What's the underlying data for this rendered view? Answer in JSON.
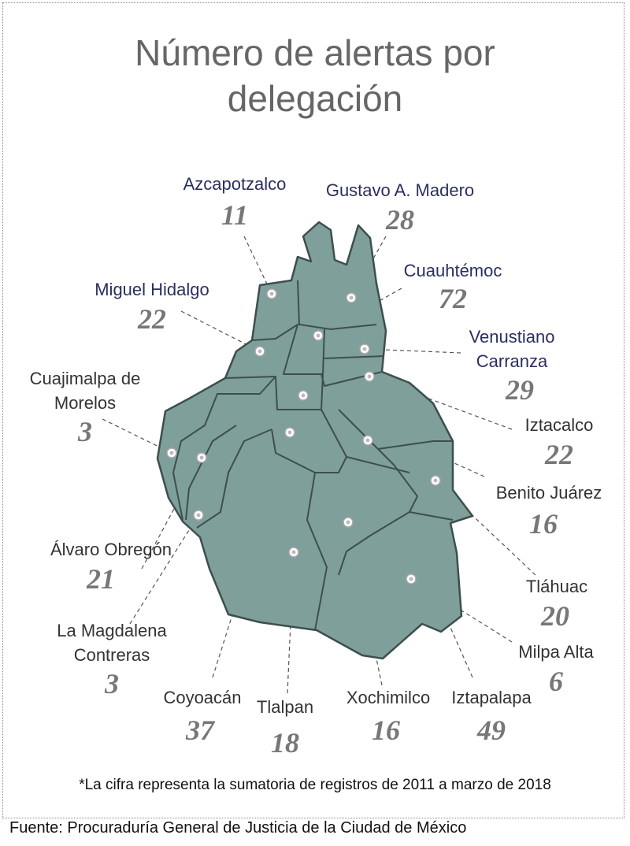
{
  "title": "Número de alertas por delegación",
  "delegations": [
    {
      "name": "Azcapotzalco",
      "value": 11
    },
    {
      "name": "Gustavo A. Madero",
      "value": 28
    },
    {
      "name": "Cuauhtémoc",
      "value": 72
    },
    {
      "name": "Miguel Hidalgo",
      "value": 22
    },
    {
      "name": "Venustiano Carranza",
      "value": 29
    },
    {
      "name": "Cuajimalpa de Morelos",
      "value": 3
    },
    {
      "name": "Iztacalco",
      "value": 22
    },
    {
      "name": "Benito Juárez",
      "value": 16
    },
    {
      "name": "Álvaro Obregón",
      "value": 21
    },
    {
      "name": "Tláhuac",
      "value": 20
    },
    {
      "name": "La Magdalena Contreras",
      "value": 3
    },
    {
      "name": "Milpa Alta",
      "value": 6
    },
    {
      "name": "Coyoacán",
      "value": 37
    },
    {
      "name": "Tlalpan",
      "value": 18
    },
    {
      "name": "Xochimilco",
      "value": 16
    },
    {
      "name": "Iztapalapa",
      "value": 49
    }
  ],
  "note": "*La cifra representa la sumatoria de registros de 2011 a marzo de 2018",
  "source": "Fuente: Procuraduría General de Justicia de la Ciudad de México"
}
